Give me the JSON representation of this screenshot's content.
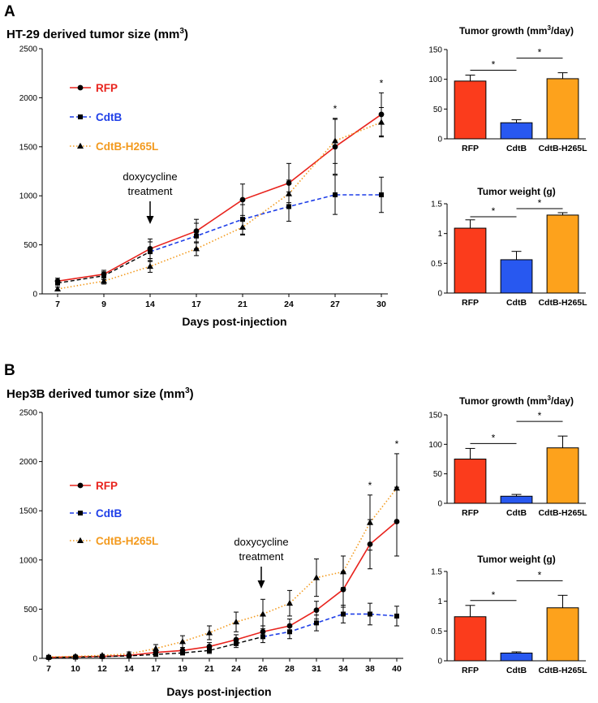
{
  "panels": {
    "A": {
      "letter": "A",
      "title_main": "HT-29 derived tumor size (mm",
      "title_sup": "3",
      "title_end": ")",
      "xlabel": "Days post-injection",
      "annotation_line1": "doxycycline",
      "annotation_line2": "treatment",
      "significance": "*"
    },
    "B": {
      "letter": "B",
      "title_main": "Hep3B derived tumor size (mm",
      "title_sup": "3",
      "title_end": ")",
      "xlabel": "Days post-injection",
      "annotation_line1": "doxycycline",
      "annotation_line2": "treatment",
      "significance": "*"
    }
  },
  "legend": [
    {
      "name": "RFP",
      "color": "#e8231d",
      "marker": "circle",
      "line": "solid"
    },
    {
      "name": "CdtB",
      "color": "#1f3fe8",
      "marker": "square",
      "line": "dashed"
    },
    {
      "name": "CdtB-H265L",
      "color": "#f39a1e",
      "marker": "triangle",
      "line": "dotted"
    }
  ],
  "chart_data": [
    {
      "id": "A-line",
      "type": "line",
      "title": "HT-29 derived tumor size (mm3)",
      "xlabel": "Days post-injection",
      "ylabel": "",
      "categories": [
        "7",
        "9",
        "14",
        "17",
        "21",
        "24",
        "27",
        "30"
      ],
      "ylim": [
        0,
        2500
      ],
      "yticks": [
        0,
        500,
        1000,
        1500,
        2000,
        2500
      ],
      "series": [
        {
          "name": "RFP",
          "color": "#e8231d",
          "values": [
            130,
            200,
            460,
            640,
            960,
            1130,
            1500,
            1830
          ],
          "errors": [
            30,
            40,
            100,
            120,
            160,
            200,
            280,
            220
          ]
        },
        {
          "name": "CdtB",
          "color": "#1f3fe8",
          "values": [
            110,
            185,
            430,
            590,
            760,
            890,
            1010,
            1010
          ],
          "errors": [
            20,
            40,
            100,
            130,
            150,
            150,
            200,
            180
          ]
        },
        {
          "name": "CdtB-H265L",
          "color": "#f39a1e",
          "values": [
            50,
            130,
            280,
            460,
            680,
            1020,
            1560,
            1750
          ],
          "errors": [
            20,
            30,
            60,
            70,
            80,
            140,
            230,
            150
          ]
        }
      ],
      "annotation_day": "14",
      "significant_days": [
        "27",
        "30"
      ]
    },
    {
      "id": "A-growth",
      "type": "bar",
      "title": "Tumor growth (mm3/day)",
      "categories": [
        "RFP",
        "CdtB",
        "CdtB-H265L"
      ],
      "values": [
        97,
        27,
        101
      ],
      "errors": [
        10,
        5,
        10
      ],
      "colors": [
        "#fb3c1c",
        "#2858f0",
        "#fda21c"
      ],
      "ylim": [
        0,
        150
      ],
      "yticks": [
        0,
        50,
        100,
        150
      ],
      "significance": [
        "RFP vs CdtB *",
        "CdtB vs CdtB-H265L *"
      ]
    },
    {
      "id": "A-weight",
      "type": "bar",
      "title": "Tumor weight (g)",
      "categories": [
        "RFP",
        "CdtB",
        "CdtB-H265L"
      ],
      "values": [
        1.09,
        0.56,
        1.31
      ],
      "errors": [
        0.14,
        0.14,
        0.04
      ],
      "colors": [
        "#fb3c1c",
        "#2858f0",
        "#fda21c"
      ],
      "ylim": [
        0,
        1.5
      ],
      "yticks": [
        0,
        0.5,
        1,
        1.5
      ],
      "significance": [
        "RFP vs CdtB *",
        "CdtB vs CdtB-H265L *"
      ]
    },
    {
      "id": "B-line",
      "type": "line",
      "title": "Hep3B derived tumor size (mm3)",
      "xlabel": "Days post-injection",
      "ylabel": "",
      "categories": [
        "7",
        "10",
        "12",
        "14",
        "17",
        "19",
        "21",
        "24",
        "26",
        "28",
        "31",
        "34",
        "38",
        "40"
      ],
      "ylim": [
        0,
        2500
      ],
      "yticks": [
        0,
        500,
        1000,
        1500,
        2000,
        2500
      ],
      "series": [
        {
          "name": "RFP",
          "color": "#e8231d",
          "values": [
            10,
            15,
            20,
            30,
            60,
            80,
            120,
            190,
            270,
            330,
            490,
            700,
            1160,
            1390
          ],
          "errors": [
            5,
            10,
            10,
            15,
            25,
            30,
            40,
            50,
            60,
            70,
            90,
            180,
            250,
            350
          ]
        },
        {
          "name": "CdtB",
          "color": "#1f3fe8",
          "values": [
            10,
            12,
            18,
            25,
            40,
            55,
            80,
            150,
            220,
            270,
            360,
            450,
            450,
            430
          ],
          "errors": [
            5,
            5,
            10,
            10,
            15,
            20,
            30,
            40,
            60,
            70,
            80,
            90,
            110,
            100
          ]
        },
        {
          "name": "CdtB-H265L",
          "color": "#f39a1e",
          "values": [
            15,
            20,
            30,
            45,
            100,
            170,
            260,
            370,
            450,
            560,
            820,
            880,
            1380,
            1730
          ],
          "errors": [
            5,
            10,
            10,
            20,
            40,
            60,
            70,
            100,
            150,
            130,
            190,
            160,
            280,
            350
          ]
        }
      ],
      "annotation_day": "26",
      "significant_days": [
        "38",
        "40"
      ]
    },
    {
      "id": "B-growth",
      "type": "bar",
      "title": "Tumor growth (mm3/day)",
      "categories": [
        "RFP",
        "CdtB",
        "CdtB-H265L"
      ],
      "values": [
        75,
        12,
        94
      ],
      "errors": [
        18,
        3,
        20
      ],
      "colors": [
        "#fb3c1c",
        "#2858f0",
        "#fda21c"
      ],
      "ylim": [
        0,
        150
      ],
      "yticks": [
        0,
        50,
        100,
        150
      ],
      "significance": [
        "RFP vs CdtB *",
        "CdtB vs CdtB-H265L *"
      ]
    },
    {
      "id": "B-weight",
      "type": "bar",
      "title": "Tumor weight (g)",
      "categories": [
        "RFP",
        "CdtB",
        "CdtB-H265L"
      ],
      "values": [
        0.74,
        0.13,
        0.89
      ],
      "errors": [
        0.19,
        0.02,
        0.21
      ],
      "colors": [
        "#fb3c1c",
        "#2858f0",
        "#fda21c"
      ],
      "ylim": [
        0,
        1.5
      ],
      "yticks": [
        0,
        0.5,
        1,
        1.5
      ],
      "significance": [
        "RFP vs CdtB *",
        "CdtB vs CdtB-H265L *"
      ]
    }
  ]
}
